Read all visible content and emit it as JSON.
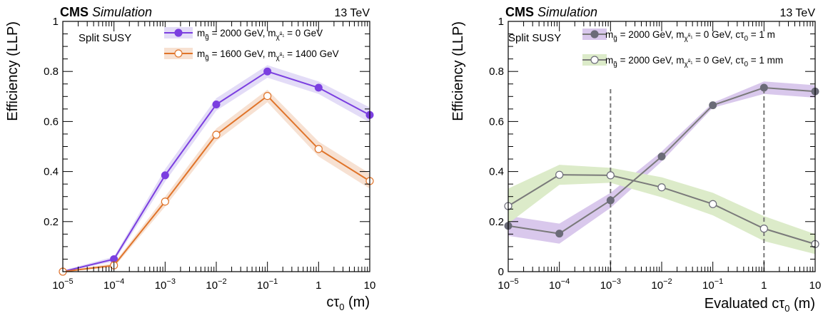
{
  "chart_data": [
    {
      "type": "line",
      "header": {
        "experiment": "CMS",
        "status": "Simulation",
        "energy": "13 TeV"
      },
      "ylabel": "Efficiency (LLP)",
      "xlabel": "cτ0 (m)",
      "xscale": "log",
      "xlim": [
        1e-05,
        10
      ],
      "ylim": [
        0,
        1
      ],
      "annotation": "Split SUSY",
      "yticks": [
        "0.2",
        "0.4",
        "0.6",
        "0.8",
        "1"
      ],
      "xticks": [
        {
          "base": "10",
          "exp": "−5"
        },
        {
          "base": "10",
          "exp": "−4"
        },
        {
          "base": "10",
          "exp": "−3"
        },
        {
          "base": "10",
          "exp": "−2"
        },
        {
          "base": "10",
          "exp": "−1"
        },
        {
          "base": "1",
          "exp": ""
        },
        {
          "base": "10",
          "exp": ""
        }
      ],
      "legend_position": "top-right",
      "grid": false,
      "series": [
        {
          "name": "m_g̃ = 2000 GeV, m_χ̃⁰₁ = 0 GeV",
          "label_parts": {
            "g": "2000 GeV",
            "chi": "0 GeV",
            "ctau": ""
          },
          "color": "#7b3fe0",
          "band_color": "#e3dcf7",
          "marker": "filled",
          "x": [
            1e-05,
            0.0001,
            0.001,
            0.01,
            0.1,
            1,
            10
          ],
          "y": [
            0.0,
            0.05,
            0.385,
            0.668,
            0.8,
            0.735,
            0.626
          ],
          "err": [
            0.005,
            0.01,
            0.025,
            0.025,
            0.025,
            0.025,
            0.03
          ]
        },
        {
          "name": "m_g̃ = 1600 GeV, m_χ̃⁰₁ = 1400 GeV",
          "label_parts": {
            "g": "1600 GeV",
            "chi": "1400 GeV",
            "ctau": ""
          },
          "color": "#e0742a",
          "band_color": "#f7e1d2",
          "marker": "open",
          "x": [
            1e-05,
            0.0001,
            0.001,
            0.01,
            0.1,
            1,
            10
          ],
          "y": [
            0.0,
            0.025,
            0.28,
            0.547,
            0.702,
            0.49,
            0.362
          ],
          "err": [
            0.004,
            0.008,
            0.02,
            0.025,
            0.025,
            0.03,
            0.03
          ]
        }
      ]
    },
    {
      "type": "line",
      "header": {
        "experiment": "CMS",
        "status": "Simulation",
        "energy": "13 TeV"
      },
      "ylabel": "Efficiency (LLP)",
      "xlabel": "Evaluated cτ0 (m)",
      "xscale": "log",
      "xlim": [
        1e-05,
        10
      ],
      "ylim": [
        0,
        1
      ],
      "annotation": "Split SUSY",
      "yticks": [
        "0",
        "0.2",
        "0.4",
        "0.6",
        "0.8",
        "1"
      ],
      "xticks": [
        {
          "base": "10",
          "exp": "−5"
        },
        {
          "base": "10",
          "exp": "−4"
        },
        {
          "base": "10",
          "exp": "−3"
        },
        {
          "base": "10",
          "exp": "−2"
        },
        {
          "base": "10",
          "exp": "−1"
        },
        {
          "base": "1",
          "exp": ""
        },
        {
          "base": "10",
          "exp": ""
        }
      ],
      "vlines": [
        0.001,
        1
      ],
      "legend_position": "top-right",
      "grid": false,
      "series": [
        {
          "name": "m_g̃ = 2000 GeV, m_χ̃⁰₁ = 0 GeV, cτ0 = 1 m",
          "label_parts": {
            "g": "2000 GeV",
            "chi": "0 GeV",
            "ctau": "1 m"
          },
          "color": "#7a7a7a",
          "marker_color": "#6b6b78",
          "band_color": "#d9c8ec",
          "marker": "filled",
          "x": [
            1e-05,
            0.0001,
            0.001,
            0.01,
            0.1,
            1,
            10
          ],
          "y": [
            0.183,
            0.152,
            0.285,
            0.46,
            0.665,
            0.735,
            0.72
          ],
          "err": [
            0.04,
            0.04,
            0.03,
            0.02,
            0.01,
            0.025,
            0.025
          ]
        },
        {
          "name": "m_g̃ = 2000 GeV, m_χ̃⁰₁ = 0 GeV, cτ0 = 1 mm",
          "label_parts": {
            "g": "2000 GeV",
            "chi": "0 GeV",
            "ctau": "1 mm"
          },
          "color": "#7a7a7a",
          "marker_color": "#6b6b78",
          "band_color": "#dcebc9",
          "marker": "open",
          "x": [
            1e-05,
            0.0001,
            0.001,
            0.01,
            0.1,
            1,
            10
          ],
          "y": [
            0.262,
            0.387,
            0.385,
            0.337,
            0.27,
            0.172,
            0.11
          ],
          "err": [
            0.07,
            0.04,
            0.03,
            0.04,
            0.045,
            0.05,
            0.04
          ]
        }
      ]
    }
  ]
}
